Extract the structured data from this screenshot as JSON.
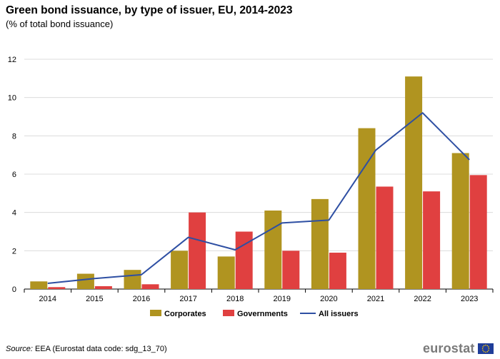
{
  "header": {
    "title": "Green bond issuance, by type of issuer, EU, 2014-2023",
    "subtitle": "(% of total bond issuance)"
  },
  "footer": {
    "source_label": "Source:",
    "source_text": "EEA (Eurostat data code: sdg_13_70)",
    "logo_text": "eurostat"
  },
  "colors": {
    "corporates": "#b09420",
    "governments": "#e04040",
    "all_issuers": "#2e4fa3",
    "grid": "#dcdcdc",
    "axis": "#000000"
  },
  "chart_data": {
    "type": "bar",
    "title": "Green bond issuance, by type of issuer, EU, 2014-2023",
    "subtitle": "(% of total bond issuance)",
    "xlabel": "",
    "ylabel": "",
    "ylim": [
      0,
      12
    ],
    "yticks": [
      0,
      2,
      4,
      6,
      8,
      10,
      12
    ],
    "grid": true,
    "legend_position": "bottom-center",
    "categories": [
      "2014",
      "2015",
      "2016",
      "2017",
      "2018",
      "2019",
      "2020",
      "2021",
      "2022",
      "2023"
    ],
    "series": [
      {
        "name": "Corporates",
        "type": "bar",
        "values": [
          0.4,
          0.8,
          1.0,
          2.0,
          1.7,
          4.1,
          4.7,
          8.4,
          11.1,
          7.1
        ]
      },
      {
        "name": "Governments",
        "type": "bar",
        "values": [
          0.1,
          0.15,
          0.25,
          4.0,
          3.0,
          2.0,
          1.9,
          5.35,
          5.1,
          5.95
        ]
      },
      {
        "name": "All issuers",
        "type": "line",
        "values": [
          0.3,
          0.55,
          0.75,
          2.7,
          2.05,
          3.45,
          3.6,
          7.25,
          9.2,
          6.75
        ]
      }
    ]
  }
}
